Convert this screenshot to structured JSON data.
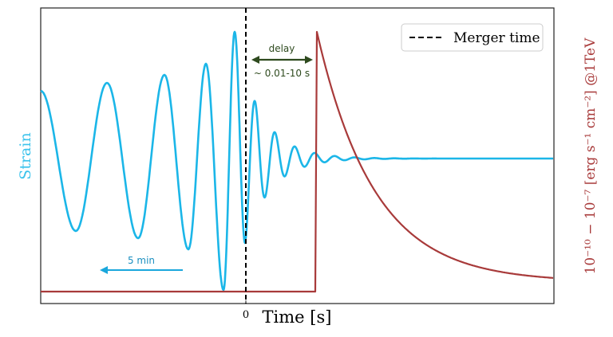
{
  "chart_data": {
    "type": "line",
    "xlabel": "Time [s]",
    "ylabel_left": "Strain",
    "ylabel_right": "10⁻¹⁰ − 10⁻⁷ [erg s⁻¹ cm⁻²] @1TeV",
    "x_ticks": [
      {
        "value": 0,
        "label": "0"
      }
    ],
    "legend": {
      "position": "top-right",
      "entries": [
        {
          "label": "Merger time",
          "style": "dashed",
          "color": "#000000"
        }
      ]
    },
    "annotations": [
      {
        "text": "delay",
        "color": "#2e4a1e"
      },
      {
        "text": "~ 0.01-10 s",
        "color": "#2e4a1e"
      },
      {
        "text": "5 min",
        "color": "#1a8fc0"
      }
    ],
    "colors": {
      "strain": "#1bb6e8",
      "flux": "#a83a3a",
      "delay_arrow": "#2e4a1e",
      "time_arrow": "#1aa7dc",
      "strain_label": "#3cc3ec",
      "flux_label": "#a83a3a"
    },
    "series": [
      {
        "kind": "gravitational-wave strain",
        "color": "#1bb6e8"
      },
      {
        "kind": "gamma-ray flux",
        "color": "#a83a3a"
      }
    ]
  }
}
